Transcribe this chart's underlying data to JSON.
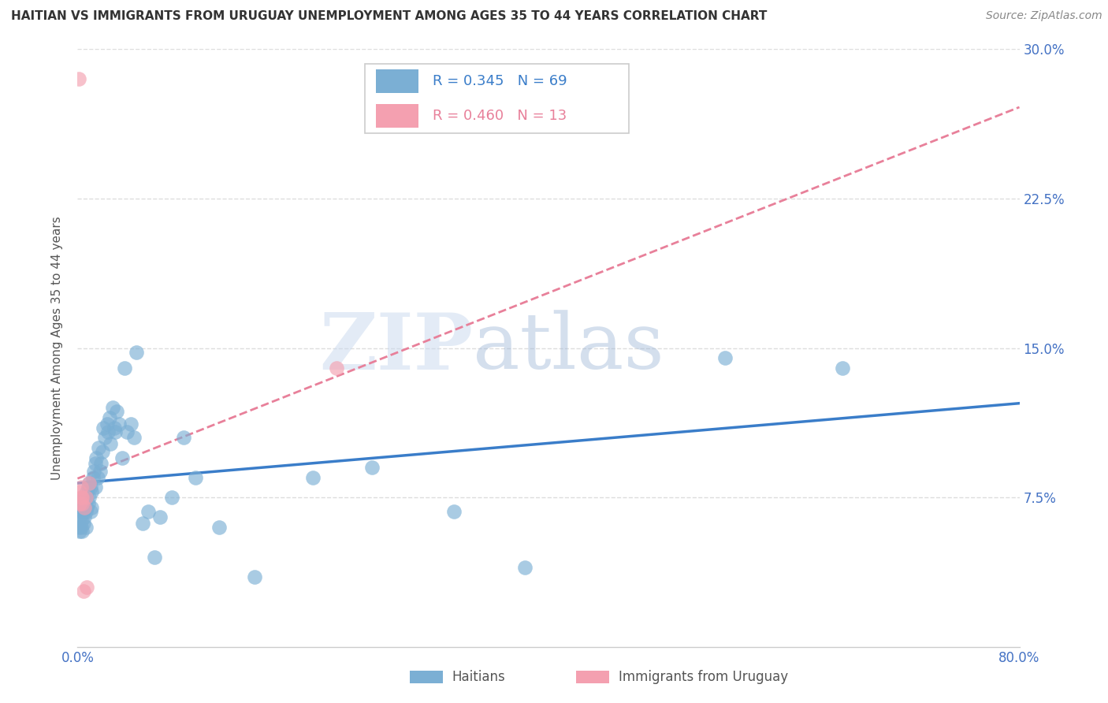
{
  "title": "HAITIAN VS IMMIGRANTS FROM URUGUAY UNEMPLOYMENT AMONG AGES 35 TO 44 YEARS CORRELATION CHART",
  "source": "Source: ZipAtlas.com",
  "ylabel": "Unemployment Among Ages 35 to 44 years",
  "xlim": [
    0.0,
    0.8
  ],
  "ylim": [
    0.0,
    0.3
  ],
  "xticks": [
    0.0,
    0.2,
    0.4,
    0.6,
    0.8
  ],
  "xticklabels": [
    "0.0%",
    "",
    "",
    "",
    "80.0%"
  ],
  "yticks": [
    0.0,
    0.075,
    0.15,
    0.225,
    0.3
  ],
  "yticklabels": [
    "",
    "7.5%",
    "15.0%",
    "22.5%",
    "30.0%"
  ],
  "haitian_color": "#7BAFD4",
  "uruguay_color": "#F4A0B0",
  "haitian_line_color": "#3A7DC9",
  "uruguay_line_color": "#E8809A",
  "haitian_R": 0.345,
  "haitian_N": 69,
  "uruguay_R": 0.46,
  "uruguay_N": 13,
  "watermark_zip": "ZIP",
  "watermark_atlas": "atlas",
  "title_fontsize": 11,
  "axis_label_fontsize": 11,
  "tick_fontsize": 12,
  "legend_fontsize": 13,
  "source_fontsize": 10,
  "grid_color": "#DDDDDD",
  "background_color": "#FFFFFF",
  "right_tick_color": "#4472C4",
  "haitian_x": [
    0.001,
    0.002,
    0.002,
    0.003,
    0.003,
    0.003,
    0.004,
    0.004,
    0.004,
    0.005,
    0.005,
    0.005,
    0.006,
    0.006,
    0.007,
    0.007,
    0.007,
    0.008,
    0.008,
    0.009,
    0.009,
    0.01,
    0.01,
    0.011,
    0.011,
    0.012,
    0.012,
    0.013,
    0.014,
    0.015,
    0.015,
    0.016,
    0.017,
    0.018,
    0.019,
    0.02,
    0.021,
    0.022,
    0.023,
    0.025,
    0.026,
    0.027,
    0.028,
    0.03,
    0.031,
    0.032,
    0.033,
    0.035,
    0.038,
    0.04,
    0.042,
    0.045,
    0.048,
    0.05,
    0.055,
    0.06,
    0.065,
    0.07,
    0.08,
    0.09,
    0.1,
    0.12,
    0.15,
    0.2,
    0.25,
    0.32,
    0.38,
    0.55,
    0.65
  ],
  "haitian_y": [
    0.06,
    0.058,
    0.065,
    0.06,
    0.063,
    0.07,
    0.058,
    0.068,
    0.072,
    0.062,
    0.068,
    0.075,
    0.065,
    0.072,
    0.06,
    0.068,
    0.075,
    0.07,
    0.078,
    0.072,
    0.08,
    0.075,
    0.082,
    0.068,
    0.08,
    0.07,
    0.078,
    0.085,
    0.088,
    0.08,
    0.092,
    0.095,
    0.085,
    0.1,
    0.088,
    0.092,
    0.098,
    0.11,
    0.105,
    0.112,
    0.108,
    0.115,
    0.102,
    0.12,
    0.11,
    0.108,
    0.118,
    0.112,
    0.095,
    0.14,
    0.108,
    0.112,
    0.105,
    0.148,
    0.062,
    0.068,
    0.045,
    0.065,
    0.075,
    0.105,
    0.085,
    0.06,
    0.035,
    0.085,
    0.09,
    0.068,
    0.04,
    0.145,
    0.14
  ],
  "uruguay_x": [
    0.001,
    0.002,
    0.002,
    0.003,
    0.003,
    0.004,
    0.004,
    0.005,
    0.006,
    0.007,
    0.008,
    0.01,
    0.22
  ],
  "uruguay_y": [
    0.285,
    0.072,
    0.078,
    0.075,
    0.08,
    0.075,
    0.072,
    0.028,
    0.07,
    0.075,
    0.03,
    0.082,
    0.14
  ]
}
